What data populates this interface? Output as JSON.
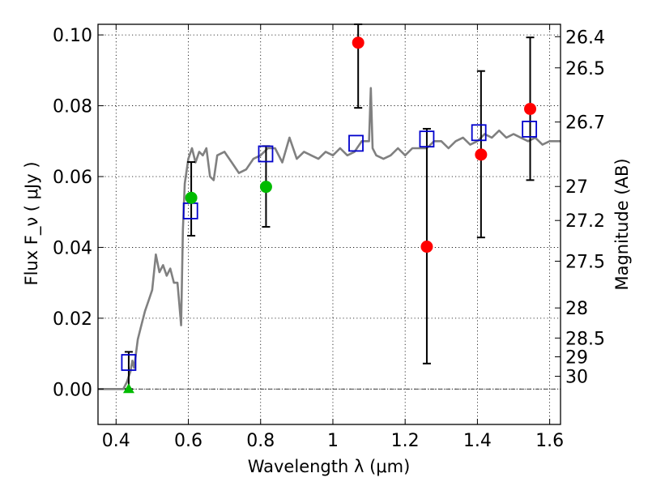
{
  "chart_data": {
    "type": "scatter",
    "xlabel": "Wavelength  λ (μm)",
    "ylabel": "Flux  F_ν  ( μJy )",
    "y2label": "Magnitude (AB)",
    "xlim": [
      0.35,
      1.63
    ],
    "ylim": [
      -0.01,
      0.103
    ],
    "grid": true,
    "x_ticks": [
      0.4,
      0.6,
      0.8,
      1.0,
      1.2,
      1.4,
      1.6
    ],
    "x_tick_labels": [
      "0.4",
      "0.6",
      "0.8",
      "1",
      "1.2",
      "1.4",
      "1.6"
    ],
    "y_ticks": [
      0.0,
      0.02,
      0.04,
      0.06,
      0.08,
      0.1
    ],
    "y_tick_labels": [
      "0.00",
      "0.02",
      "0.04",
      "0.06",
      "0.08",
      "0.10"
    ],
    "right_ticks": [
      {
        "label": "26.4",
        "flux": 0.0995
      },
      {
        "label": "26.5",
        "flux": 0.0907
      },
      {
        "label": "26.7",
        "flux": 0.0754
      },
      {
        "label": "27",
        "flux": 0.0572
      },
      {
        "label": "27.2",
        "flux": 0.0476
      },
      {
        "label": "27.5",
        "flux": 0.0361
      },
      {
        "label": "28",
        "flux": 0.0229
      },
      {
        "label": "28.5",
        "flux": 0.0144
      },
      {
        "label": "29",
        "flux": 0.0091
      },
      {
        "label": "30",
        "flux": 0.0036
      }
    ],
    "colors": {
      "model": "#808080",
      "model_points": "#0000cc",
      "red_points": "#ff0000",
      "green_points": "#00bb00",
      "error_bars": "#000000",
      "zero_line": "#000000"
    },
    "series": [
      {
        "name": "model spectrum",
        "style": "line",
        "x": [
          0.35,
          0.4,
          0.42,
          0.43,
          0.44,
          0.445,
          0.45,
          0.46,
          0.47,
          0.48,
          0.49,
          0.5,
          0.51,
          0.52,
          0.53,
          0.54,
          0.55,
          0.56,
          0.57,
          0.575,
          0.58,
          0.585,
          0.59,
          0.6,
          0.61,
          0.62,
          0.63,
          0.64,
          0.65,
          0.66,
          0.67,
          0.68,
          0.7,
          0.72,
          0.74,
          0.76,
          0.78,
          0.8,
          0.82,
          0.84,
          0.86,
          0.88,
          0.9,
          0.92,
          0.94,
          0.96,
          0.98,
          1.0,
          1.02,
          1.04,
          1.06,
          1.08,
          1.1,
          1.105,
          1.11,
          1.12,
          1.14,
          1.16,
          1.18,
          1.2,
          1.22,
          1.24,
          1.26,
          1.28,
          1.3,
          1.32,
          1.34,
          1.36,
          1.38,
          1.4,
          1.42,
          1.44,
          1.46,
          1.48,
          1.5,
          1.52,
          1.54,
          1.56,
          1.58,
          1.6,
          1.63
        ],
        "y": [
          0.0,
          0.0,
          0.0,
          0.002,
          0.005,
          0.008,
          0.006,
          0.014,
          0.018,
          0.022,
          0.025,
          0.028,
          0.038,
          0.033,
          0.035,
          0.032,
          0.034,
          0.03,
          0.03,
          0.024,
          0.018,
          0.045,
          0.058,
          0.065,
          0.068,
          0.064,
          0.067,
          0.066,
          0.068,
          0.06,
          0.059,
          0.066,
          0.067,
          0.064,
          0.061,
          0.062,
          0.065,
          0.066,
          0.068,
          0.068,
          0.064,
          0.071,
          0.065,
          0.067,
          0.066,
          0.065,
          0.067,
          0.066,
          0.068,
          0.066,
          0.067,
          0.07,
          0.07,
          0.085,
          0.068,
          0.066,
          0.065,
          0.066,
          0.068,
          0.066,
          0.068,
          0.068,
          0.068,
          0.07,
          0.07,
          0.068,
          0.07,
          0.071,
          0.069,
          0.07,
          0.072,
          0.071,
          0.073,
          0.071,
          0.072,
          0.071,
          0.07,
          0.071,
          0.069,
          0.07,
          0.07
        ]
      },
      {
        "name": "model photometry",
        "style": "open-square",
        "x": [
          0.435,
          0.606,
          0.814,
          1.064,
          1.26,
          1.404,
          1.544
        ],
        "y": [
          0.0075,
          0.0503,
          0.0664,
          0.0694,
          0.0706,
          0.0724,
          0.0734
        ]
      },
      {
        "name": "observed photometry (red)",
        "style": "filled-circle",
        "x": [
          1.07,
          1.26,
          1.41,
          1.546
        ],
        "y": [
          0.0978,
          0.0402,
          0.0662,
          0.0791
        ],
        "yerr_low": [
          0.0794,
          0.0072,
          0.0428,
          0.059
        ],
        "yerr_high": [
          0.103,
          0.0735,
          0.0898,
          0.0993
        ]
      },
      {
        "name": "observed photometry (green)",
        "style": "filled-circle",
        "x": [
          0.608,
          0.815
        ],
        "y": [
          0.054,
          0.0571
        ],
        "yerr_low": [
          0.0433,
          0.0458
        ],
        "yerr_high": [
          0.0641,
          0.0686
        ]
      },
      {
        "name": "non-detection",
        "style": "filled-triangle",
        "x": [
          0.435
        ],
        "y": [
          0.0
        ],
        "yerr_low": [
          0.0
        ],
        "yerr_high": [
          0.0105
        ]
      }
    ]
  }
}
